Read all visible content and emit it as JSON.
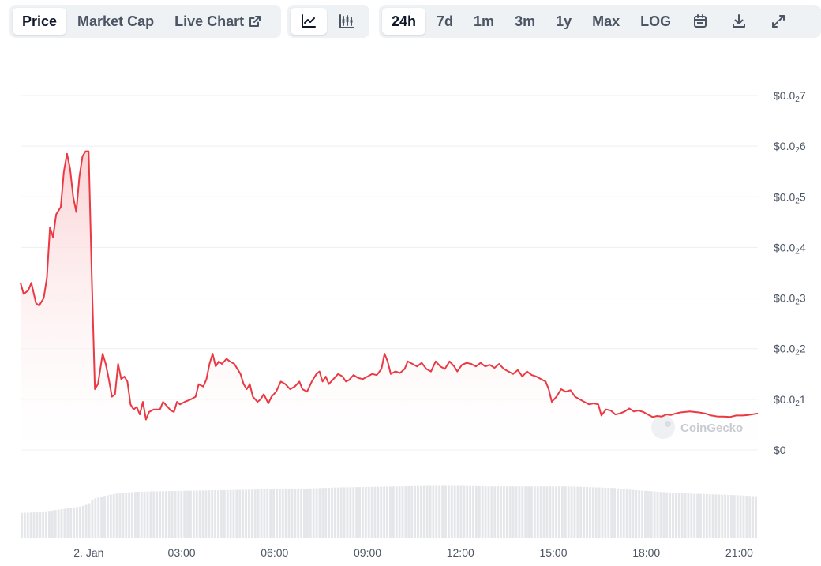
{
  "toolbar": {
    "data_type_tabs": [
      {
        "label": "Price",
        "active": true
      },
      {
        "label": "Market Cap",
        "active": false
      },
      {
        "label": "Live Chart",
        "active": false,
        "icon": "external-link-icon"
      }
    ],
    "chart_style_buttons": [
      {
        "icon": "line-chart-icon",
        "active": true
      },
      {
        "icon": "candlestick-chart-icon",
        "active": false
      }
    ],
    "range_tabs": [
      {
        "label": "24h",
        "active": true
      },
      {
        "label": "7d",
        "active": false
      },
      {
        "label": "1m",
        "active": false
      },
      {
        "label": "3m",
        "active": false
      },
      {
        "label": "1y",
        "active": false
      },
      {
        "label": "Max",
        "active": false
      },
      {
        "label": "LOG",
        "active": false
      }
    ],
    "tool_icons": [
      "calendar-icon",
      "download-icon",
      "expand-icon"
    ]
  },
  "watermark": "CoinGecko",
  "colors": {
    "line": "#ea3943",
    "area_top": "#fbd3d5",
    "volume": "#e4e6ea",
    "grid": "#eceff3",
    "toolbar_bg": "#eff2f5"
  },
  "chart_data": {
    "type": "area",
    "y_axis_position": "right",
    "ylim": [
      0,
      7
    ],
    "y_ticks": [
      {
        "prefix": "$0.0",
        "sub": "2",
        "digit": "7",
        "value": 7
      },
      {
        "prefix": "$0.0",
        "sub": "2",
        "digit": "6",
        "value": 6
      },
      {
        "prefix": "$0.0",
        "sub": "2",
        "digit": "5",
        "value": 5
      },
      {
        "prefix": "$0.0",
        "sub": "2",
        "digit": "4",
        "value": 4
      },
      {
        "prefix": "$0.0",
        "sub": "2",
        "digit": "3",
        "value": 3
      },
      {
        "prefix": "$0.0",
        "sub": "2",
        "digit": "2",
        "value": 2
      },
      {
        "prefix": "$0.0",
        "sub": "2",
        "digit": "1",
        "value": 1
      },
      {
        "prefix": "$0",
        "sub": "",
        "digit": "",
        "value": 0
      }
    ],
    "xlim": [
      -2.2,
      21.6
    ],
    "x_ticks": [
      {
        "label": "2. Jan",
        "value": 0
      },
      {
        "label": "03:00",
        "value": 3
      },
      {
        "label": "06:00",
        "value": 6
      },
      {
        "label": "09:00",
        "value": 9
      },
      {
        "label": "12:00",
        "value": 12
      },
      {
        "label": "15:00",
        "value": 15
      },
      {
        "label": "18:00",
        "value": 18
      },
      {
        "label": "21:00",
        "value": 21
      }
    ],
    "grid": true,
    "series": [
      {
        "type": "line",
        "points": [
          [
            -2.2,
            3.3
          ],
          [
            -2.1,
            3.08
          ],
          [
            -1.95,
            3.15
          ],
          [
            -1.85,
            3.3
          ],
          [
            -1.7,
            2.9
          ],
          [
            -1.6,
            2.85
          ],
          [
            -1.45,
            3.0
          ],
          [
            -1.35,
            3.4
          ],
          [
            -1.25,
            4.4
          ],
          [
            -1.15,
            4.2
          ],
          [
            -1.05,
            4.65
          ],
          [
            -0.9,
            4.8
          ],
          [
            -0.8,
            5.5
          ],
          [
            -0.7,
            5.85
          ],
          [
            -0.6,
            5.55
          ],
          [
            -0.5,
            5.0
          ],
          [
            -0.4,
            4.7
          ],
          [
            -0.3,
            5.4
          ],
          [
            -0.2,
            5.8
          ],
          [
            -0.1,
            5.9
          ],
          [
            0.0,
            5.9
          ],
          [
            0.1,
            3.4
          ],
          [
            0.2,
            1.2
          ],
          [
            0.3,
            1.3
          ],
          [
            0.45,
            1.9
          ],
          [
            0.55,
            1.7
          ],
          [
            0.65,
            1.4
          ],
          [
            0.75,
            1.05
          ],
          [
            0.85,
            1.1
          ],
          [
            0.95,
            1.7
          ],
          [
            1.05,
            1.4
          ],
          [
            1.15,
            1.45
          ],
          [
            1.25,
            1.35
          ],
          [
            1.35,
            0.9
          ],
          [
            1.45,
            0.8
          ],
          [
            1.55,
            0.85
          ],
          [
            1.65,
            0.7
          ],
          [
            1.75,
            0.95
          ],
          [
            1.85,
            0.6
          ],
          [
            1.95,
            0.75
          ],
          [
            2.1,
            0.8
          ],
          [
            2.3,
            0.8
          ],
          [
            2.4,
            0.95
          ],
          [
            2.55,
            0.85
          ],
          [
            2.65,
            0.78
          ],
          [
            2.75,
            0.75
          ],
          [
            2.85,
            0.95
          ],
          [
            2.95,
            0.9
          ],
          [
            3.1,
            0.95
          ],
          [
            3.3,
            1.0
          ],
          [
            3.45,
            1.05
          ],
          [
            3.55,
            1.3
          ],
          [
            3.7,
            1.25
          ],
          [
            3.8,
            1.4
          ],
          [
            3.9,
            1.7
          ],
          [
            4.0,
            1.9
          ],
          [
            4.1,
            1.65
          ],
          [
            4.2,
            1.75
          ],
          [
            4.3,
            1.7
          ],
          [
            4.45,
            1.8
          ],
          [
            4.55,
            1.75
          ],
          [
            4.7,
            1.7
          ],
          [
            4.8,
            1.6
          ],
          [
            4.9,
            1.5
          ],
          [
            5.0,
            1.3
          ],
          [
            5.1,
            1.2
          ],
          [
            5.2,
            1.3
          ],
          [
            5.3,
            1.05
          ],
          [
            5.45,
            0.95
          ],
          [
            5.55,
            1.0
          ],
          [
            5.65,
            1.1
          ],
          [
            5.8,
            0.92
          ],
          [
            5.9,
            1.05
          ],
          [
            6.05,
            1.15
          ],
          [
            6.2,
            1.35
          ],
          [
            6.35,
            1.3
          ],
          [
            6.5,
            1.2
          ],
          [
            6.65,
            1.25
          ],
          [
            6.8,
            1.35
          ],
          [
            6.9,
            1.2
          ],
          [
            7.05,
            1.15
          ],
          [
            7.2,
            1.35
          ],
          [
            7.35,
            1.5
          ],
          [
            7.45,
            1.55
          ],
          [
            7.55,
            1.35
          ],
          [
            7.65,
            1.45
          ],
          [
            7.75,
            1.3
          ],
          [
            7.9,
            1.4
          ],
          [
            8.05,
            1.5
          ],
          [
            8.2,
            1.45
          ],
          [
            8.3,
            1.35
          ],
          [
            8.4,
            1.38
          ],
          [
            8.55,
            1.48
          ],
          [
            8.7,
            1.42
          ],
          [
            8.85,
            1.4
          ],
          [
            9.0,
            1.45
          ],
          [
            9.15,
            1.5
          ],
          [
            9.3,
            1.48
          ],
          [
            9.45,
            1.6
          ],
          [
            9.55,
            1.9
          ],
          [
            9.65,
            1.75
          ],
          [
            9.75,
            1.5
          ],
          [
            9.9,
            1.55
          ],
          [
            10.05,
            1.52
          ],
          [
            10.2,
            1.6
          ],
          [
            10.3,
            1.75
          ],
          [
            10.45,
            1.7
          ],
          [
            10.6,
            1.65
          ],
          [
            10.75,
            1.72
          ],
          [
            10.9,
            1.6
          ],
          [
            11.05,
            1.55
          ],
          [
            11.2,
            1.75
          ],
          [
            11.35,
            1.65
          ],
          [
            11.5,
            1.6
          ],
          [
            11.65,
            1.75
          ],
          [
            11.8,
            1.65
          ],
          [
            11.9,
            1.55
          ],
          [
            12.05,
            1.68
          ],
          [
            12.2,
            1.72
          ],
          [
            12.35,
            1.7
          ],
          [
            12.5,
            1.65
          ],
          [
            12.65,
            1.72
          ],
          [
            12.8,
            1.65
          ],
          [
            12.95,
            1.68
          ],
          [
            13.1,
            1.62
          ],
          [
            13.25,
            1.7
          ],
          [
            13.4,
            1.6
          ],
          [
            13.55,
            1.55
          ],
          [
            13.7,
            1.5
          ],
          [
            13.85,
            1.58
          ],
          [
            14.0,
            1.45
          ],
          [
            14.15,
            1.55
          ],
          [
            14.3,
            1.48
          ],
          [
            14.45,
            1.45
          ],
          [
            14.6,
            1.4
          ],
          [
            14.75,
            1.35
          ],
          [
            14.85,
            1.2
          ],
          [
            14.95,
            0.95
          ],
          [
            15.1,
            1.05
          ],
          [
            15.25,
            1.2
          ],
          [
            15.4,
            1.15
          ],
          [
            15.55,
            1.18
          ],
          [
            15.7,
            1.05
          ],
          [
            15.85,
            1.0
          ],
          [
            16.0,
            0.95
          ],
          [
            16.15,
            0.9
          ],
          [
            16.3,
            0.92
          ],
          [
            16.45,
            0.9
          ],
          [
            16.55,
            0.68
          ],
          [
            16.7,
            0.8
          ],
          [
            16.85,
            0.78
          ],
          [
            17.0,
            0.7
          ],
          [
            17.15,
            0.72
          ],
          [
            17.3,
            0.76
          ],
          [
            17.45,
            0.82
          ],
          [
            17.6,
            0.76
          ],
          [
            17.75,
            0.78
          ],
          [
            17.9,
            0.75
          ],
          [
            18.05,
            0.7
          ],
          [
            18.2,
            0.65
          ],
          [
            18.35,
            0.67
          ],
          [
            18.5,
            0.66
          ],
          [
            18.65,
            0.7
          ],
          [
            18.8,
            0.69
          ],
          [
            18.95,
            0.72
          ],
          [
            19.1,
            0.74
          ],
          [
            19.25,
            0.75
          ],
          [
            19.4,
            0.76
          ],
          [
            19.55,
            0.75
          ],
          [
            19.7,
            0.74
          ],
          [
            19.9,
            0.72
          ],
          [
            20.1,
            0.68
          ],
          [
            20.3,
            0.66
          ],
          [
            20.5,
            0.66
          ],
          [
            20.7,
            0.65
          ],
          [
            20.9,
            0.68
          ],
          [
            21.1,
            0.68
          ],
          [
            21.3,
            0.69
          ],
          [
            21.6,
            0.72
          ]
        ]
      }
    ],
    "volume": {
      "max": 100,
      "points": [
        [
          -2.2,
          46
        ],
        [
          -1.7,
          47
        ],
        [
          -1.2,
          50
        ],
        [
          -0.7,
          54
        ],
        [
          -0.2,
          58
        ],
        [
          0.0,
          62
        ],
        [
          0.2,
          72
        ],
        [
          0.6,
          78
        ],
        [
          1.0,
          82
        ],
        [
          1.5,
          84
        ],
        [
          2.0,
          85
        ],
        [
          3.0,
          86
        ],
        [
          4.0,
          87
        ],
        [
          5.0,
          88
        ],
        [
          6.0,
          89
        ],
        [
          7.0,
          90
        ],
        [
          8.0,
          92
        ],
        [
          9.0,
          93
        ],
        [
          10.0,
          94
        ],
        [
          11.0,
          95
        ],
        [
          12.0,
          95
        ],
        [
          13.0,
          94
        ],
        [
          14.0,
          94
        ],
        [
          15.0,
          94
        ],
        [
          15.5,
          94
        ],
        [
          16.0,
          93
        ],
        [
          17.0,
          91
        ],
        [
          17.5,
          88
        ],
        [
          18.0,
          86
        ],
        [
          18.5,
          84
        ],
        [
          19.0,
          82
        ],
        [
          19.5,
          81
        ],
        [
          20.0,
          80
        ],
        [
          20.5,
          79
        ],
        [
          21.0,
          78
        ],
        [
          21.6,
          76
        ]
      ]
    }
  }
}
